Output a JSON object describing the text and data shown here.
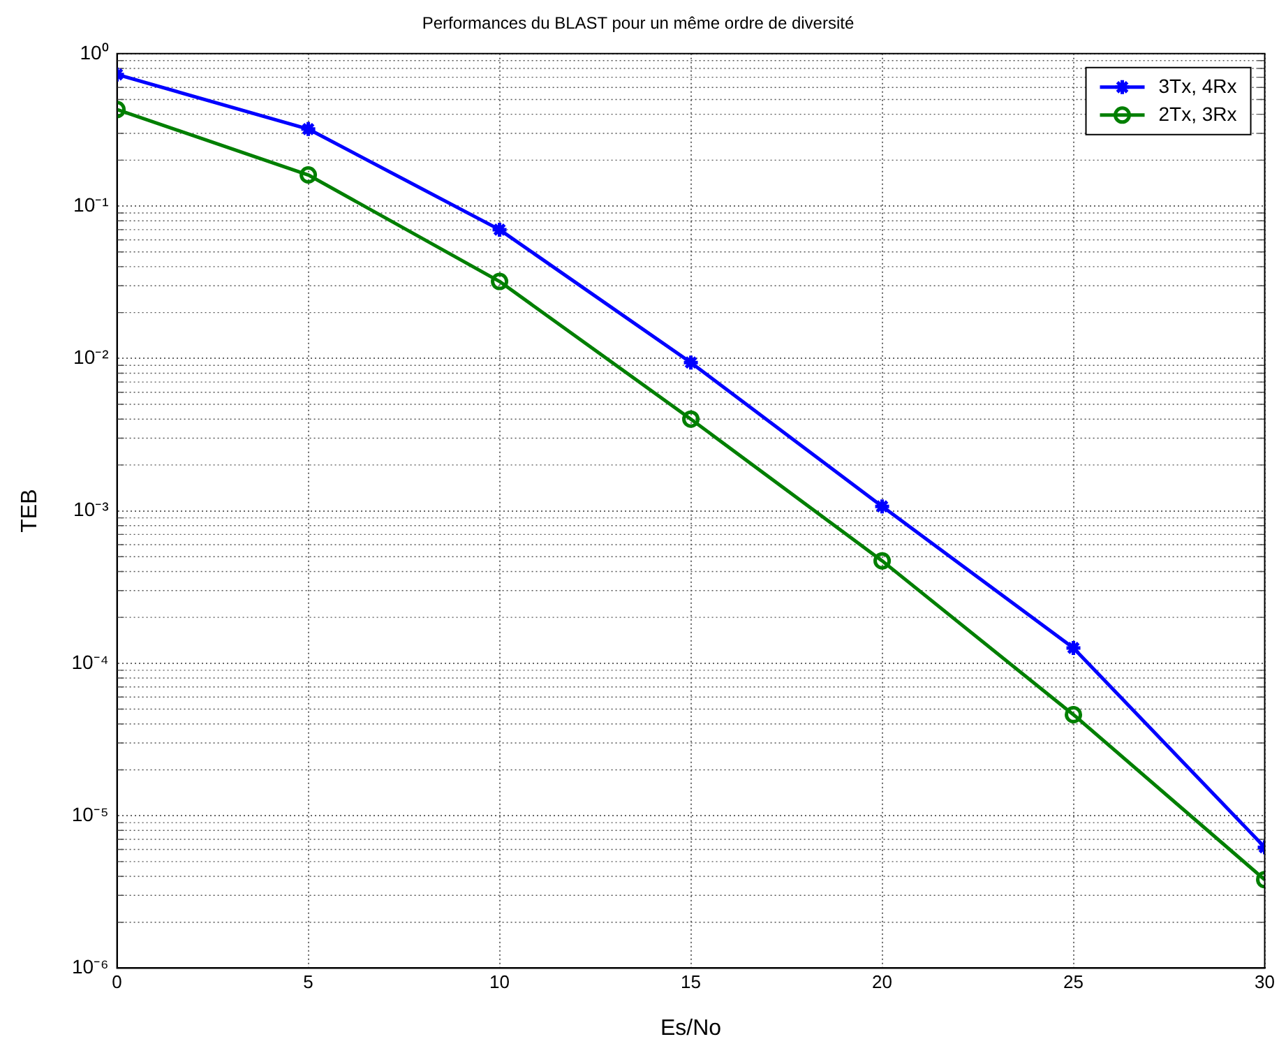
{
  "chart_data": {
    "type": "line",
    "title": "Performances du BLAST pour un même ordre de diversité",
    "xlabel": "Es/No",
    "ylabel": "TEB",
    "x": [
      0,
      5,
      10,
      15,
      20,
      25,
      30
    ],
    "series": [
      {
        "name": "3Tx, 4Rx",
        "color": "#0000ff",
        "marker": "cross",
        "values": [
          0.73,
          0.32,
          0.07,
          0.0094,
          0.00107,
          0.000126,
          6.2e-06
        ]
      },
      {
        "name": "2Tx, 3Rx",
        "color": "#007f00",
        "marker": "circle",
        "values": [
          0.43,
          0.16,
          0.032,
          0.004,
          0.00047,
          4.6e-05,
          3.8e-06
        ]
      }
    ],
    "xlim": [
      0,
      30
    ],
    "xticks": [
      0,
      5,
      10,
      15,
      20,
      25,
      30
    ],
    "ylim": [
      1e-06,
      1
    ],
    "yticks": [
      {
        "value": 1e-06,
        "label": "10⁻⁶"
      },
      {
        "value": 1e-05,
        "label": "10⁻⁵"
      },
      {
        "value": 0.0001,
        "label": "10⁻⁴"
      },
      {
        "value": 0.001,
        "label": "10⁻³"
      },
      {
        "value": 0.01,
        "label": "10⁻²"
      },
      {
        "value": 0.1,
        "label": "10⁻¹"
      },
      {
        "value": 1,
        "label": "10⁰"
      }
    ],
    "log": true,
    "grid": true,
    "legend": "top right",
    "line_style": "solid"
  }
}
